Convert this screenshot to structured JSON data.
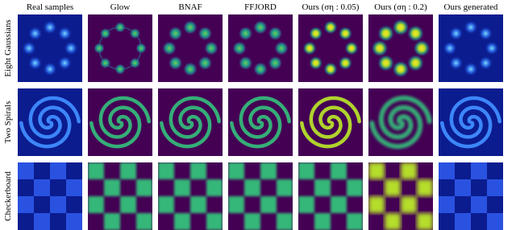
{
  "columns": [
    "Real samples",
    "Glow",
    "BNAF",
    "FFJORD",
    "Ours (ση : 0.05)",
    "Ours (ση : 0.2)",
    "Ours generated"
  ],
  "rows": [
    "Eight Gaussians",
    "Two Spirals",
    "Checkerboard"
  ]
}
